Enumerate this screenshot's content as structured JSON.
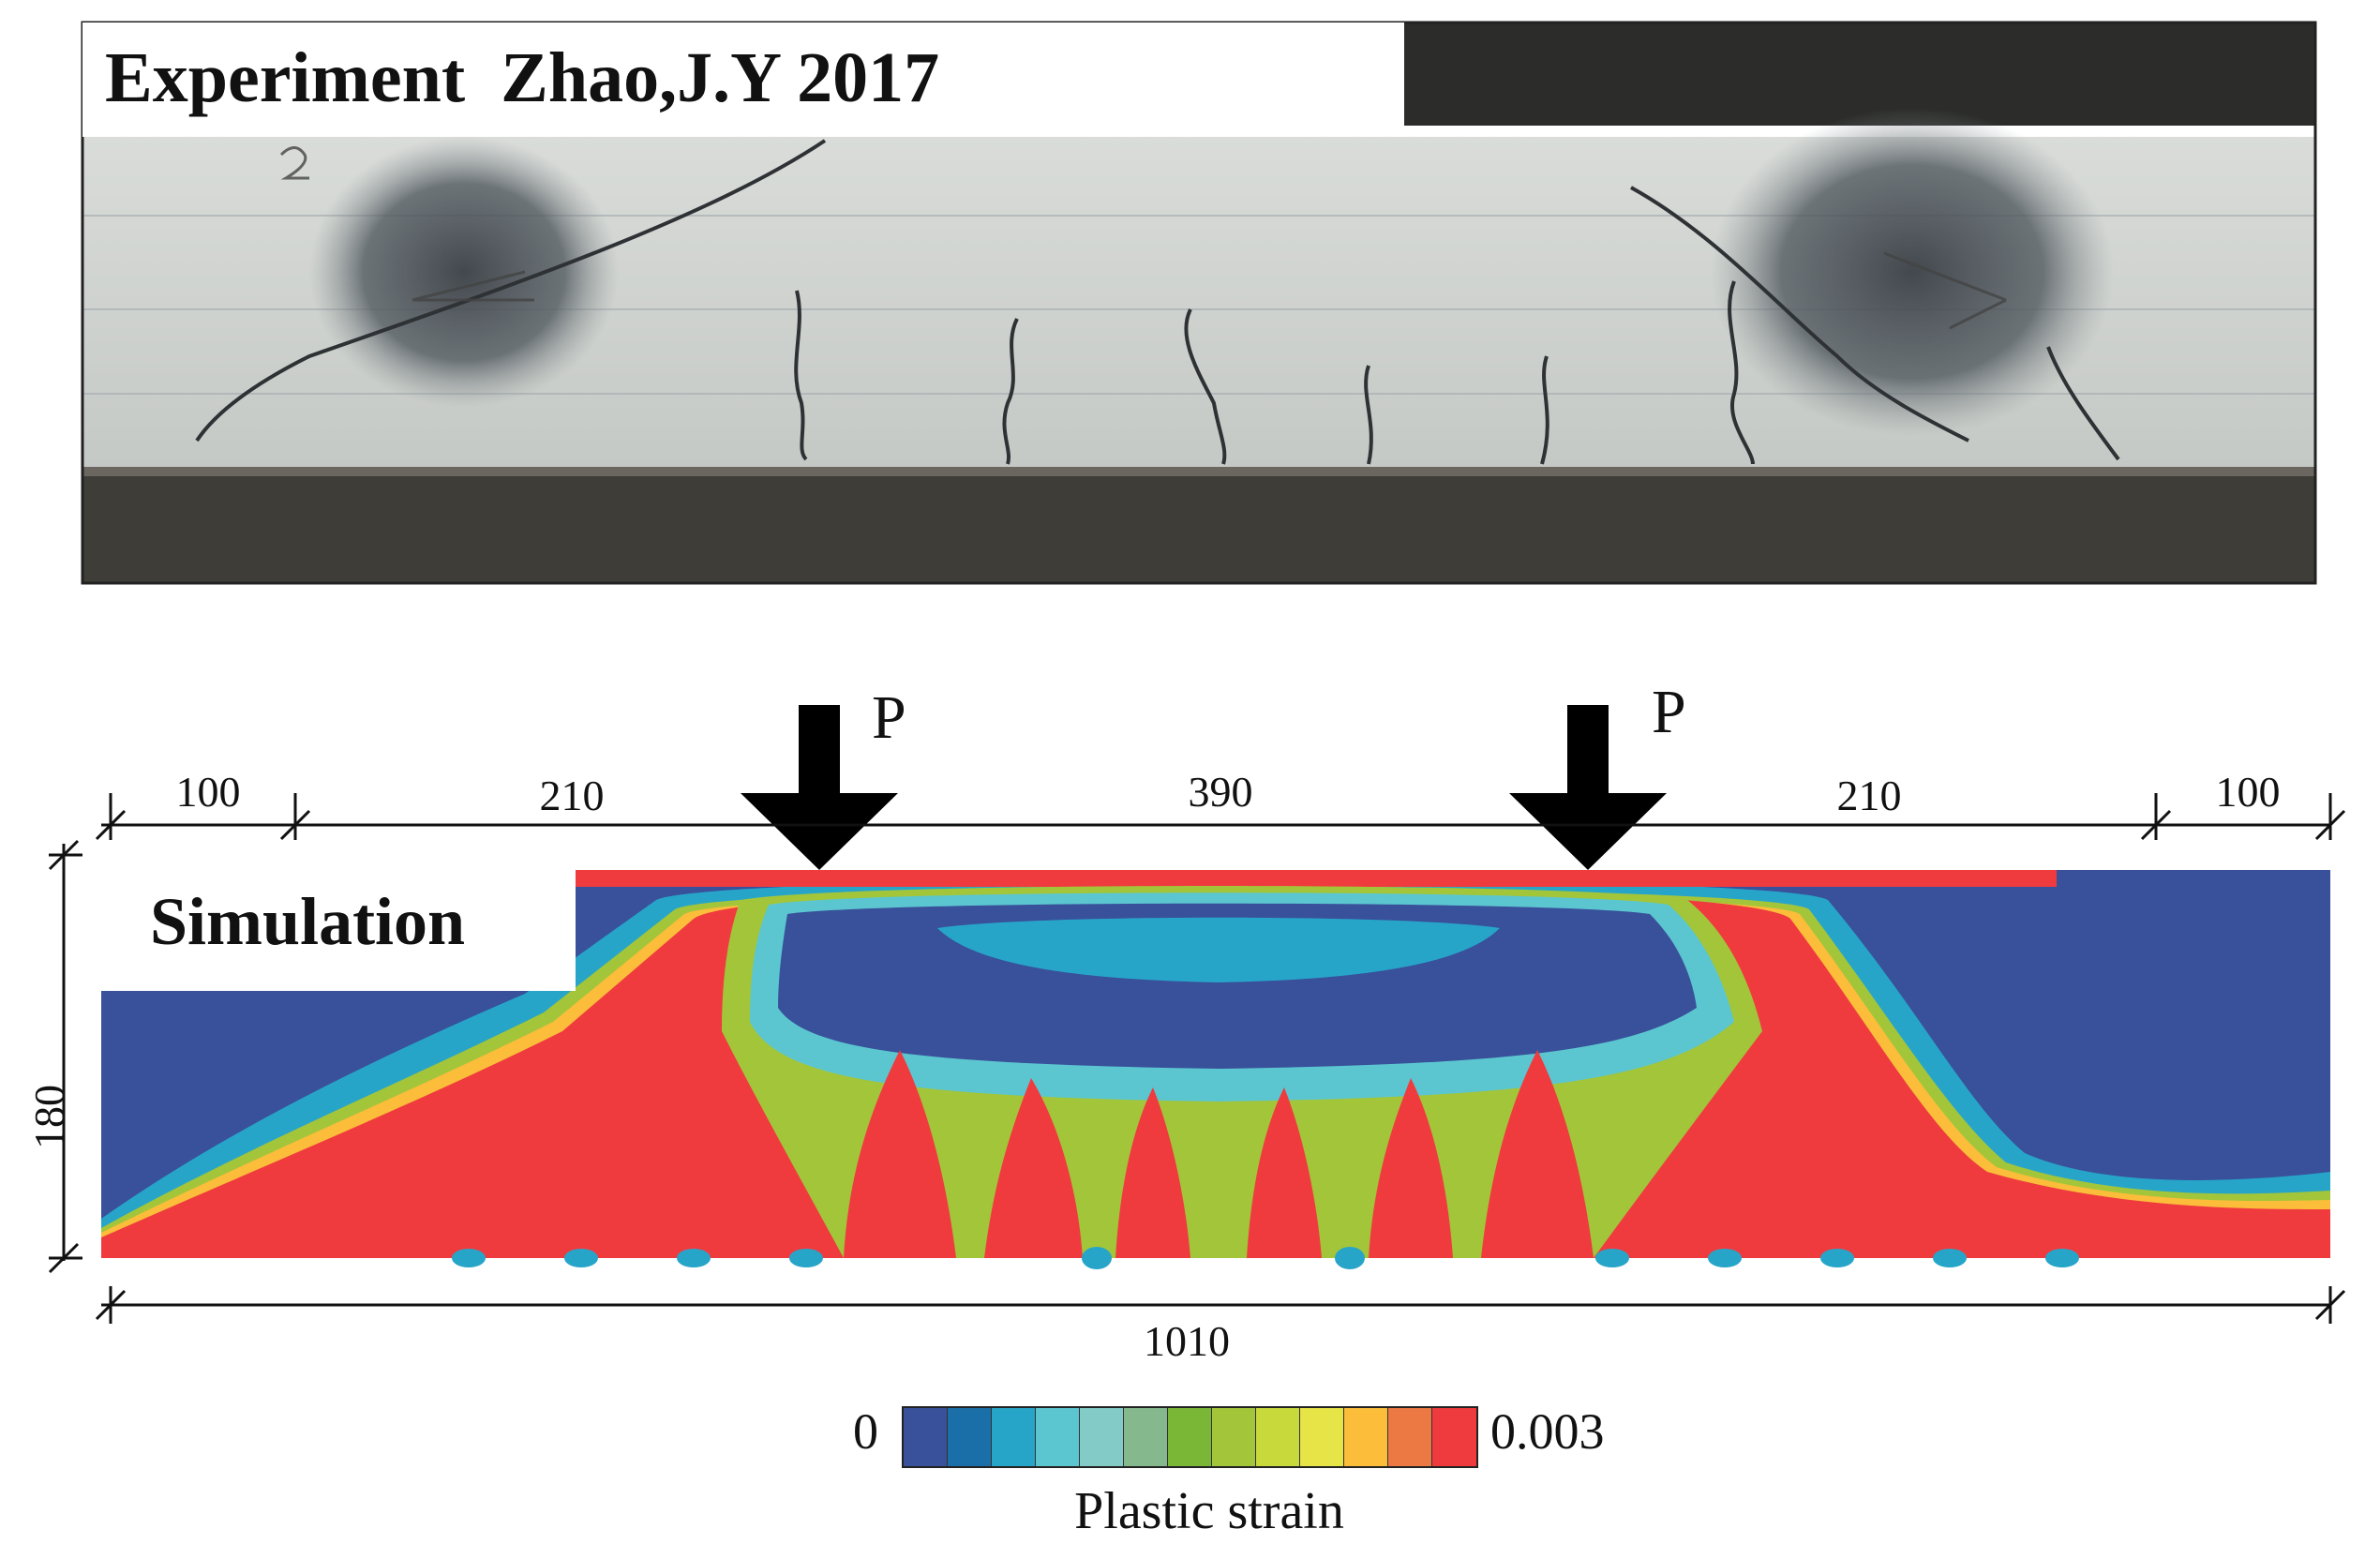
{
  "experiment": {
    "title": "Experiment  Zhao,J.Y 2017"
  },
  "simulation": {
    "title": "Simulation"
  },
  "loads": [
    {
      "label": "P"
    },
    {
      "label": "P"
    }
  ],
  "dimensions": {
    "top": [
      "100",
      "210",
      "390",
      "210",
      "100"
    ],
    "height": "180",
    "total_length": "1010"
  },
  "legend": {
    "min_label": "0",
    "max_label": "0.003",
    "title": "Plastic strain",
    "colors": [
      "#39509a",
      "#1a6fa8",
      "#27a5c9",
      "#5bc6d0",
      "#82cbc6",
      "#86b88e",
      "#7bb737",
      "#a3c53a",
      "#c8d93b",
      "#e6e447",
      "#fbbd3a",
      "#ec7844",
      "#ef3b3e"
    ]
  }
}
